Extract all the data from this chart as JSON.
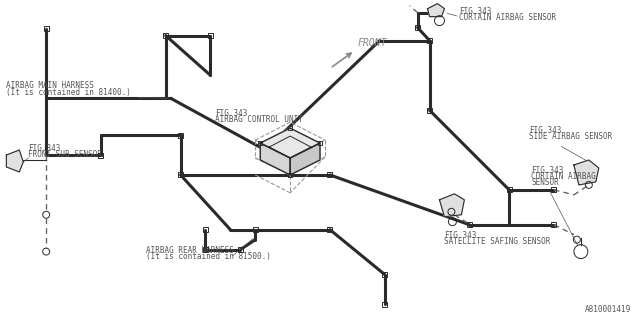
{
  "bg_color": "#ffffff",
  "line_color": "#2a2a2a",
  "dashed_color": "#666666",
  "text_color": "#555555",
  "part_number": "A810001419",
  "labels": {
    "airbag_main_harness_1": "AIRBAG MAIN HARNESS",
    "airbag_main_harness_2": "(It is contained in 81400.)",
    "front_sub_sensor_1": "FIG.343",
    "front_sub_sensor_2": "FRONT SUB SENSOR",
    "airbag_control_unit_1": "FIG.343",
    "airbag_control_unit_2": "AIRBAG CONTROL UNIT",
    "curtain_top_1": "FIG.343",
    "curtain_top_2": "CURTAIN AIRBAG SENSOR",
    "side_airbag_1": "FIG.343",
    "side_airbag_2": "SIDE AIRBAG SENSOR",
    "curtain_mid_1": "FIG.343",
    "curtain_mid_2": "CURTAIN AIRBAG",
    "curtain_mid_3": "SENSOR",
    "rear_harness_1": "AIRBAG REAR HARNESS",
    "rear_harness_2": "(It is contained in 81500.)",
    "satellite_1": "FIG.343",
    "satellite_2": "SATELLITE SAFING SENSOR",
    "front_label": "FRONT"
  },
  "wire_lw": 2.2,
  "connector_size": 5.0
}
